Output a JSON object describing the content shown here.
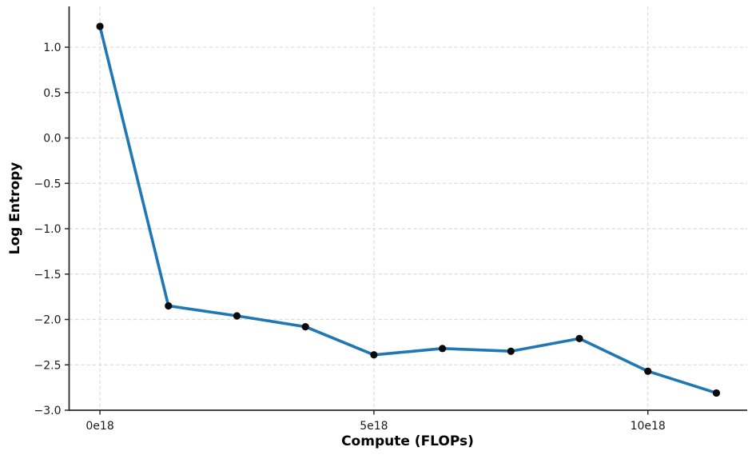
{
  "chart_data": {
    "type": "line",
    "title": "",
    "xlabel": "Compute (FLOPs)",
    "ylabel": "Log Entropy",
    "x": [
      0,
      1.25,
      2.5,
      3.75,
      5.0,
      6.25,
      7.5,
      8.75,
      10.0,
      11.25
    ],
    "y": [
      1.23,
      -1.85,
      -1.96,
      -2.08,
      -2.39,
      -2.32,
      -2.35,
      -2.21,
      -2.57,
      -2.81
    ],
    "xticks": {
      "values": [
        0,
        5,
        10
      ],
      "labels": [
        "0e18",
        "5e18",
        "10e18"
      ]
    },
    "yticks": {
      "values": [
        -3.0,
        -2.5,
        -2.0,
        -1.5,
        -1.0,
        -0.5,
        0.0,
        0.5,
        1.0
      ],
      "labels": [
        "−3.0",
        "−2.5",
        "−2.0",
        "−1.5",
        "−1.0",
        "−0.5",
        "0.0",
        "0.5",
        "1.0"
      ]
    },
    "xlim": [
      -0.5625,
      11.8125
    ],
    "ylim": [
      -3.0,
      1.45
    ],
    "grid": {
      "visible": true,
      "style": "dashed"
    },
    "legend": {
      "visible": false
    },
    "colors": {
      "line": "#1f77b4",
      "marker": "#0a0a0a",
      "grid": "#dcdcdc",
      "spine": "#2b2b2b",
      "tick": "#2b2b2b",
      "background": "#ffffff"
    }
  }
}
